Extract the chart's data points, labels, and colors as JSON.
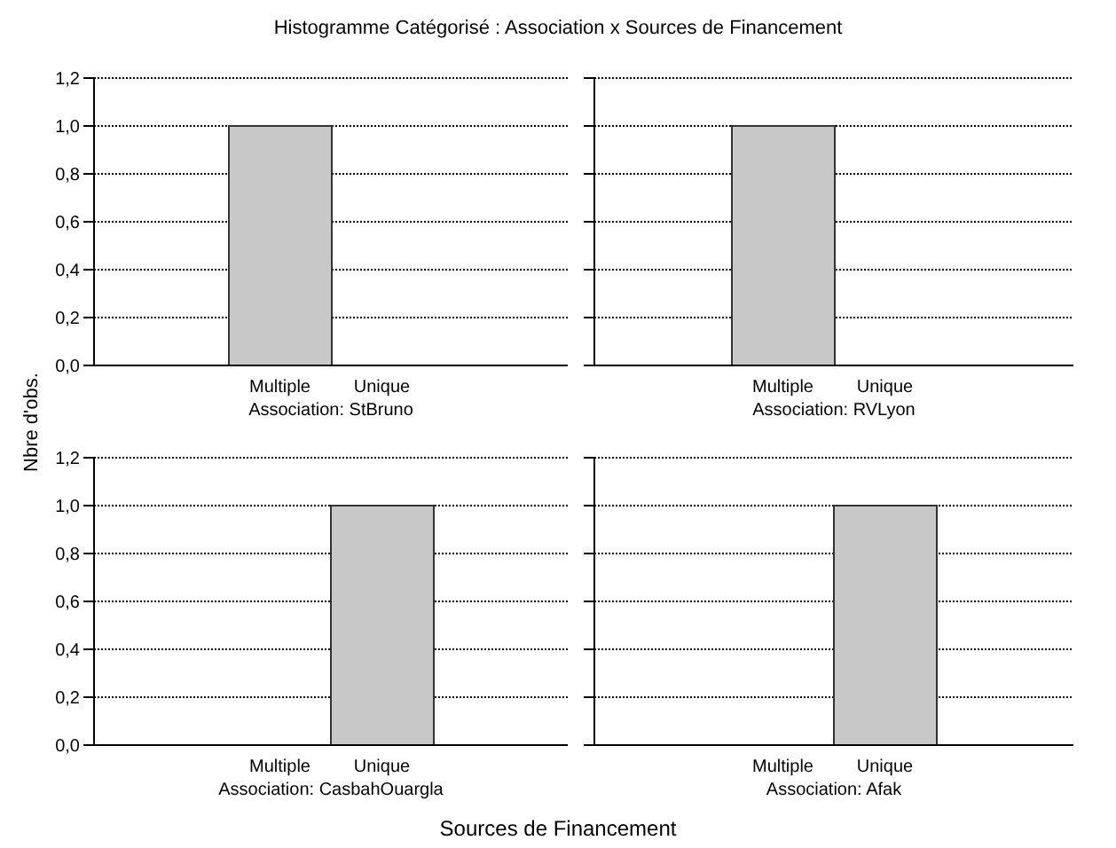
{
  "chart_data": [
    {
      "type": "bar",
      "title": "Histogramme Catégorisé : Association x Sources de Financement",
      "ylabel": "Nbre d'obs.",
      "subtitle": "Association: StBruno",
      "categories": [
        "Multiple",
        "Unique"
      ],
      "values": [
        1,
        0
      ],
      "color": "#c8c8c8",
      "ylim": [
        0,
        1.2
      ],
      "yticks": [
        {
          "value": 0,
          "label": "0,0"
        },
        {
          "value": 0.2,
          "label": "0,2"
        },
        {
          "value": 0.4,
          "label": "0,4"
        },
        {
          "value": 0.6,
          "label": "0,6"
        },
        {
          "value": 0.8,
          "label": "0,8"
        },
        {
          "value": 1,
          "label": "1,0"
        },
        {
          "value": 1.2,
          "label": "1,2"
        }
      ],
      "grid": "y"
    },
    {
      "type": "bar",
      "subtitle": "Association: RVLyon",
      "categories": [
        "Multiple",
        "Unique"
      ],
      "values": [
        1,
        0
      ],
      "color": "#c8c8c8",
      "ylim": [
        0,
        1.2
      ],
      "yticks": [
        0,
        0.2,
        0.4,
        0.6,
        0.8,
        1,
        1.2
      ],
      "grid": "y",
      "tick_labels": "x"
    },
    {
      "type": "bar",
      "xlabel": "Sources de Financement",
      "subtitle": "Association: CasbahOuargla",
      "categories": [
        "Multiple",
        "Unique"
      ],
      "values": [
        0,
        1
      ],
      "color": "#c8c8c8",
      "ylim": [
        0,
        1.2
      ],
      "yticks": [
        {
          "value": 0,
          "label": "0,0"
        },
        {
          "value": 0.2,
          "label": "0,2"
        },
        {
          "value": 0.4,
          "label": "0,4"
        },
        {
          "value": 0.6,
          "label": "0,6"
        },
        {
          "value": 0.8,
          "label": "0,8"
        },
        {
          "value": 1,
          "label": "1,0"
        },
        {
          "value": 1.2,
          "label": "1,2"
        }
      ],
      "grid": "y"
    },
    {
      "type": "bar",
      "subtitle": "Association: Afak",
      "categories": [
        "Multiple",
        "Unique"
      ],
      "values": [
        0,
        1
      ],
      "color": "#c8c8c8",
      "ylim": [
        0,
        1.2
      ],
      "yticks": [
        0,
        0.2,
        0.4,
        0.6,
        0.8,
        1,
        1.2
      ],
      "grid": "y",
      "tick_labels": "x"
    }
  ]
}
